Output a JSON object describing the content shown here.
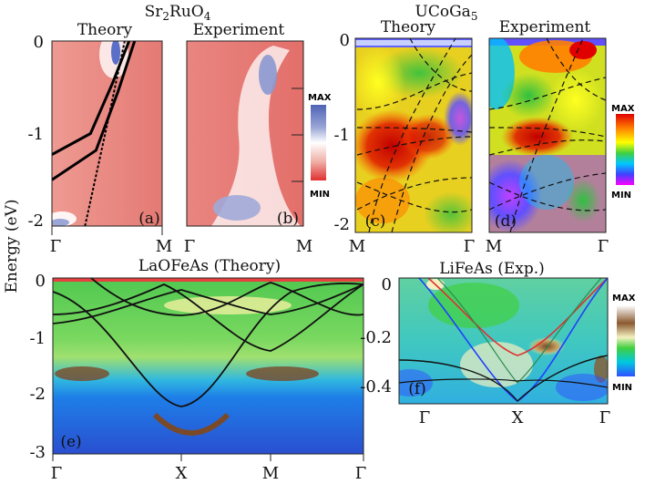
{
  "figure": {
    "ylabel": "Energy (eV)"
  },
  "colors": {
    "red_white_blue": [
      "#d94a4a",
      "#f0b8b0",
      "#ffffff",
      "#9aa6d6",
      "#4f63b6"
    ],
    "rainbow": [
      "#e00000",
      "#ff8000",
      "#ffff00",
      "#40d040",
      "#00c8ff",
      "#4040ff",
      "#ff00ff"
    ],
    "lifeas": [
      "#3050ff",
      "#00c8e0",
      "#40d040",
      "#f8f8c0",
      "#8a5a30",
      "#ffffff"
    ]
  },
  "chart_data": [
    {
      "type": "heatmap",
      "panel": "(a)",
      "group_title": "Sr2RuO4",
      "subtitle": "Theory",
      "y_ticks": [
        "0",
        "-1",
        "-2"
      ],
      "x_ticks": [
        "Γ",
        "M"
      ],
      "ylim": [
        -2.2,
        0
      ],
      "bands": [
        {
          "x": [
            0,
            0.35,
            0.55,
            0.7
          ],
          "y": [
            -1.35,
            -1.1,
            -0.5,
            0
          ]
        },
        {
          "x": [
            0,
            0.4,
            0.6,
            0.75
          ],
          "y": [
            -1.65,
            -1.3,
            -0.6,
            0
          ]
        },
        {
          "x": [
            0.3,
            0.5,
            0.66
          ],
          "y": [
            -2.2,
            -1.0,
            0
          ]
        }
      ]
    },
    {
      "type": "heatmap",
      "panel": "(b)",
      "subtitle": "Experiment",
      "x_ticks": [
        "Γ",
        "M"
      ],
      "colorbar": {
        "max": "MAX",
        "min": "MIN"
      }
    },
    {
      "type": "heatmap",
      "panel": "(c)",
      "group_title": "UCoGa5",
      "subtitle": "Theory",
      "y_ticks": [
        "0",
        "-1",
        "-2"
      ],
      "x_ticks": [
        "M",
        "Γ"
      ],
      "ylim": [
        -2.1,
        0
      ]
    },
    {
      "type": "heatmap",
      "panel": "(d)",
      "subtitle": "Experiment",
      "x_ticks": [
        "M",
        "Γ"
      ],
      "colorbar": {
        "max": "MAX",
        "min": "MIN"
      }
    },
    {
      "type": "heatmap",
      "panel": "(e)",
      "title": "LaOFeAs (Theory)",
      "y_ticks": [
        "0",
        "-1",
        "-2",
        "-3"
      ],
      "x_ticks": [
        "Γ",
        "X",
        "M",
        "Γ"
      ],
      "ylim": [
        -3,
        0
      ]
    },
    {
      "type": "heatmap",
      "panel": "(f)",
      "title": "LiFeAs (Exp.)",
      "y_ticks": [
        "0",
        "-0.2",
        "-0.4"
      ],
      "x_ticks": [
        "Γ",
        "X",
        "Γ"
      ],
      "ylim": [
        -0.45,
        0
      ],
      "colorbar": {
        "max": "MAX",
        "min": "MIN"
      }
    }
  ]
}
